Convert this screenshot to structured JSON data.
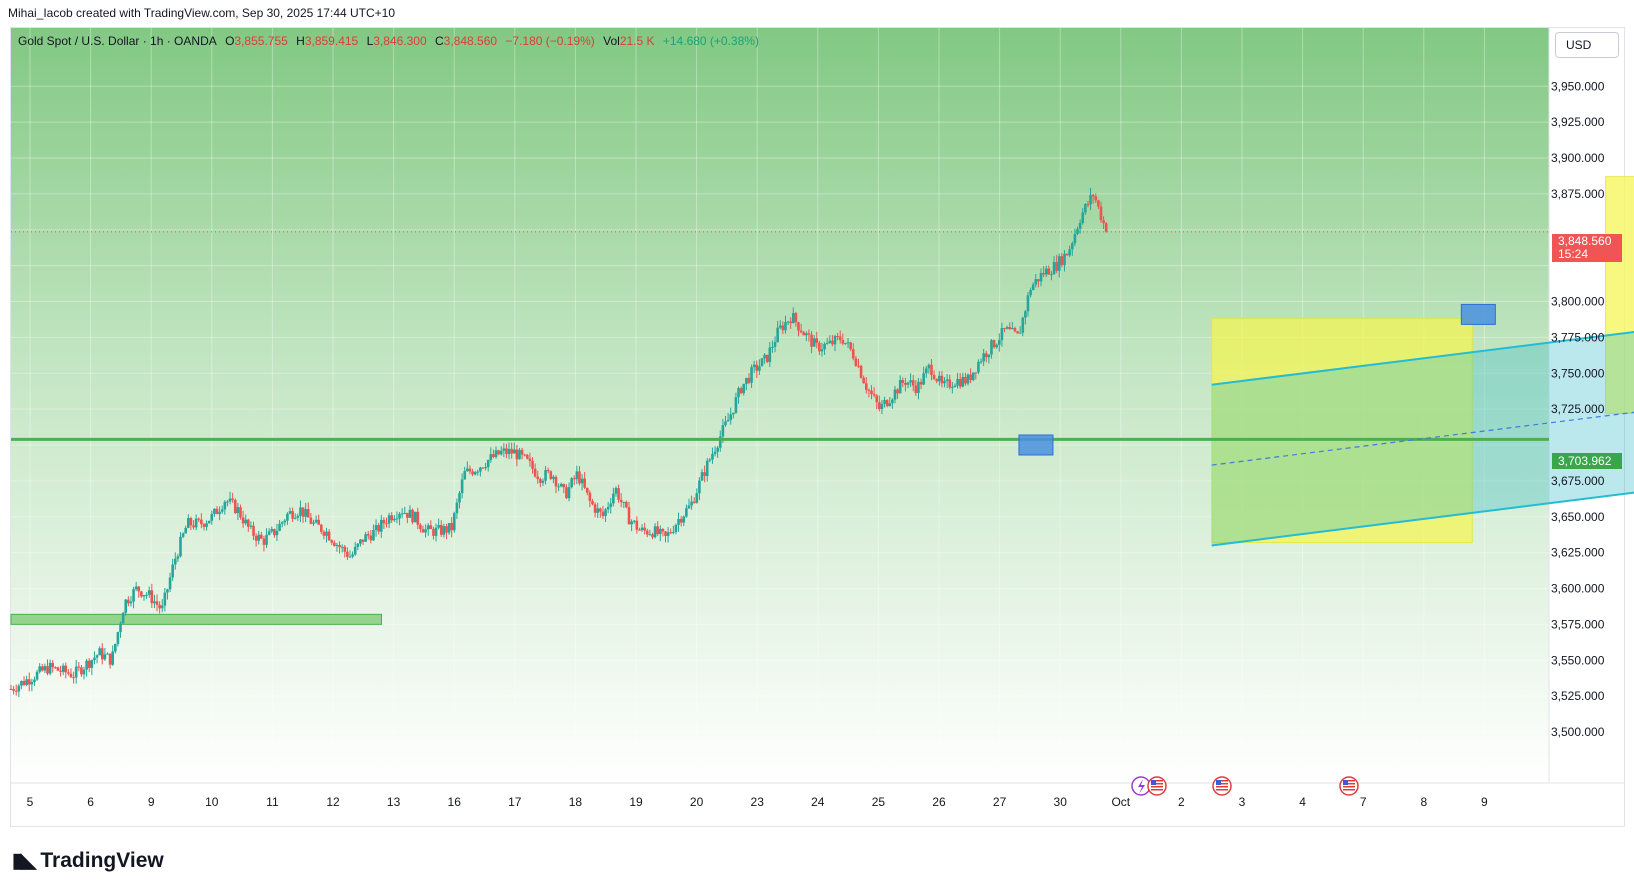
{
  "header": {
    "attribution": "Mihai_Iacob created with TradingView.com, Sep 30, 2025 17:44 UTC+10"
  },
  "legend": {
    "symbol": "Gold Spot / U.S. Dollar · 1h · OANDA",
    "o_label": "O",
    "o_value": "3,855.755",
    "h_label": "H",
    "h_value": "3,859.415",
    "l_label": "L",
    "l_value": "3,846.300",
    "c_label": "C",
    "c_value": "3,848.560",
    "change": "−7.180 (−0.19%)",
    "vol_label": "Vol",
    "vol_value": "21.5 K",
    "vol_change": "+14.680 (+0.38%)"
  },
  "currency_button": "USD",
  "price_tags": {
    "last": "3,848.560",
    "countdown": "15:24",
    "level": "3,703.962"
  },
  "footer": {
    "logo": "TradingView"
  },
  "colors": {
    "up": "#26a69a",
    "down": "#ef5350",
    "level_line": "#4caf50",
    "channel": "#22bcd4",
    "box": "#f3f66c",
    "marker": "#4a8fe0"
  },
  "icons": {
    "events": [
      "flash-icon",
      "us-flag-icon",
      "us-flag-icon",
      "us-flag-icon"
    ]
  },
  "chart_data": {
    "type": "candlestick",
    "symbol": "Gold Spot / U.S. Dollar",
    "timeframe": "1h",
    "ylim": [
      3475,
      3985
    ],
    "y_ticks": [
      3500,
      3525,
      3550,
      3575,
      3600,
      3625,
      3650,
      3675,
      3700,
      3725,
      3750,
      3775,
      3800,
      3825,
      3850,
      3875,
      3900,
      3925,
      3950
    ],
    "y_tick_labels": [
      "3,500.000",
      "3,525.000",
      "3,550.000",
      "3,575.000",
      "3,600.000",
      "3,625.000",
      "3,650.000",
      "3,675.000",
      "",
      "3,725.000",
      "3,750.000",
      "3,775.000",
      "3,800.000",
      "",
      "",
      "3,875.000",
      "3,900.000",
      "3,925.000",
      "3,950.000"
    ],
    "x_ticks": [
      "5",
      "6",
      "9",
      "10",
      "11",
      "12",
      "13",
      "16",
      "17",
      "18",
      "19",
      "20",
      "23",
      "24",
      "25",
      "26",
      "27",
      "30",
      "Oct",
      "2",
      "3",
      "4",
      "7",
      "8",
      "9"
    ],
    "price_path": [
      [
        0,
        3530
      ],
      [
        3,
        3545
      ],
      [
        5,
        3540
      ],
      [
        7,
        3555
      ],
      [
        8,
        3550
      ],
      [
        9,
        3590
      ],
      [
        10,
        3600
      ],
      [
        11,
        3595
      ],
      [
        12,
        3585
      ],
      [
        13,
        3620
      ],
      [
        14,
        3645
      ],
      [
        15,
        3645
      ],
      [
        16,
        3650
      ],
      [
        17,
        3662
      ],
      [
        18,
        3655
      ],
      [
        19,
        3640
      ],
      [
        20,
        3633
      ],
      [
        21,
        3640
      ],
      [
        22,
        3652
      ],
      [
        23,
        3655
      ],
      [
        24,
        3645
      ],
      [
        25,
        3640
      ],
      [
        26,
        3630
      ],
      [
        27,
        3622
      ],
      [
        28,
        3635
      ],
      [
        29,
        3640
      ],
      [
        30,
        3650
      ],
      [
        31,
        3655
      ],
      [
        32,
        3650
      ],
      [
        33,
        3640
      ],
      [
        34,
        3640
      ],
      [
        35,
        3642
      ],
      [
        36,
        3680
      ],
      [
        37,
        3684
      ],
      [
        38,
        3690
      ],
      [
        39,
        3695
      ],
      [
        40,
        3695
      ],
      [
        41,
        3688
      ],
      [
        42,
        3678
      ],
      [
        43,
        3680
      ],
      [
        44,
        3665
      ],
      [
        45,
        3680
      ],
      [
        46,
        3660
      ],
      [
        47,
        3650
      ],
      [
        48,
        3670
      ],
      [
        49,
        3650
      ],
      [
        50,
        3640
      ],
      [
        51,
        3640
      ],
      [
        52,
        3635
      ],
      [
        53,
        3648
      ],
      [
        54,
        3658
      ],
      [
        55,
        3680
      ],
      [
        56,
        3700
      ],
      [
        57,
        3718
      ],
      [
        58,
        3740
      ],
      [
        59,
        3752
      ],
      [
        60,
        3760
      ],
      [
        61,
        3780
      ],
      [
        62,
        3790
      ],
      [
        63,
        3778
      ],
      [
        64,
        3768
      ],
      [
        65,
        3770
      ],
      [
        66,
        3775
      ],
      [
        67,
        3762
      ],
      [
        68,
        3740
      ],
      [
        69,
        3725
      ],
      [
        70,
        3735
      ],
      [
        71,
        3745
      ],
      [
        72,
        3740
      ],
      [
        73,
        3755
      ],
      [
        74,
        3740
      ],
      [
        75,
        3745
      ],
      [
        76,
        3745
      ],
      [
        77,
        3760
      ],
      [
        78,
        3770
      ],
      [
        79,
        3780
      ],
      [
        80,
        3775
      ],
      [
        81,
        3810
      ],
      [
        82,
        3820
      ],
      [
        83,
        3825
      ],
      [
        84,
        3835
      ],
      [
        85,
        3860
      ],
      [
        86,
        3875
      ],
      [
        87,
        3849
      ]
    ],
    "horizontal_level": 3703.962,
    "support_zone": [
      3575,
      3582
    ],
    "channel": {
      "lower_start": [
        19.5,
        3630
      ],
      "lower_end": [
        55.5,
        3820
      ],
      "upper_start": [
        19.5,
        3742
      ],
      "upper_end": [
        55.5,
        3932
      ]
    },
    "boxes": [
      {
        "from": [
          19.5,
          3632
        ],
        "to": [
          23.8,
          3788
        ]
      },
      {
        "from": [
          26.0,
          3722
        ],
        "to": [
          31.3,
          3887
        ]
      }
    ],
    "markers": [
      {
        "x": 16.6,
        "y": 3700
      },
      {
        "x": 23.9,
        "y": 3791
      },
      {
        "x": 30.5,
        "y": 3882
      }
    ],
    "last_price": 3848.56
  }
}
